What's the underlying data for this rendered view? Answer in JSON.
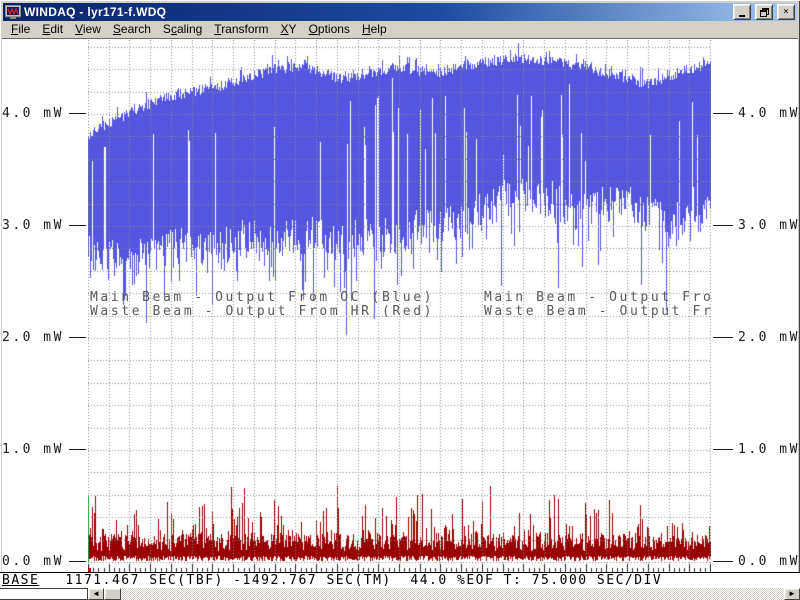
{
  "window": {
    "title": "WINDAQ - lyr171-f.WDQ",
    "buttons": {
      "minimize": "minimize",
      "restore": "restore",
      "close": "×"
    }
  },
  "menu": {
    "items": [
      {
        "label": "File",
        "hotkey_index": 0
      },
      {
        "label": "Edit",
        "hotkey_index": 0
      },
      {
        "label": "View",
        "hotkey_index": 0
      },
      {
        "label": "Search",
        "hotkey_index": 0
      },
      {
        "label": "Scaling",
        "hotkey_index": 1
      },
      {
        "label": "Transform",
        "hotkey_index": 0
      },
      {
        "label": "XY",
        "hotkey_index": 0
      },
      {
        "label": "Options",
        "hotkey_index": 0
      },
      {
        "label": "Help",
        "hotkey_index": 0
      }
    ]
  },
  "status": {
    "prefix": "BASE",
    "text": "1171.467 SEC(TBF) -1492.767 SEC(TM)  44.0 %EOF T: 75.000 SEC/DIV"
  },
  "scrollbar": {
    "left_arrow": "◄",
    "right_arrow": "►"
  },
  "colors": {
    "blue_series": "#5555e0",
    "red_series": "#990000",
    "grid": "#8c8c8c",
    "annotation": "#5a5a5a",
    "cursor_green": "#00aa22",
    "cursor_tick_red": "#cc0000",
    "chrome": "#d4d0c8",
    "title_gradient_start": "#0a246a",
    "title_gradient_end": "#a6caf0"
  },
  "chart_data": {
    "type": "line",
    "title": "",
    "xlabel": "",
    "ylabel": "mW",
    "ylim": [
      0.0,
      4.75
    ],
    "grid": "dotted",
    "x_axis": {
      "sec_per_div": 75.0,
      "time_base_sec": 1171.467,
      "time_marker_sec": -1492.767,
      "percent_eof": 44.0
    },
    "y_ticks": [
      {
        "label": "4.0 mW",
        "mw": 4.0
      },
      {
        "label": "3.0 mW",
        "mw": 3.0
      },
      {
        "label": "2.0 mW",
        "mw": 2.0
      },
      {
        "label": "1.0 mW",
        "mw": 1.0
      },
      {
        "label": "0.0 mW",
        "mw": 0.0
      }
    ],
    "annotations": {
      "left": [
        "Main Beam - Output From OC (Blue)",
        "Waste Beam - Output From HR (Red)"
      ],
      "right_truncated": [
        "Main Beam - Output Fro",
        "Waste Beam - Output Fr"
      ]
    },
    "series": [
      {
        "name": "Main Beam - Output From OC (Blue)",
        "color": "#5555e0",
        "envelope_top_mw": [
          3.82,
          3.96,
          4.1,
          4.18,
          4.24,
          4.3,
          4.4,
          4.43,
          4.32,
          4.36,
          4.43,
          4.36,
          4.42,
          4.47,
          4.5,
          4.46,
          4.42,
          4.34,
          4.27,
          4.37,
          4.46
        ],
        "envelope_bottom_mw": [
          2.8,
          2.7,
          2.74,
          2.82,
          2.78,
          2.9,
          2.86,
          2.96,
          2.82,
          2.95,
          2.9,
          3.05,
          3.0,
          3.2,
          3.3,
          3.22,
          3.12,
          3.25,
          3.1,
          3.05,
          3.15
        ],
        "spike_depth_mw": [
          0.5,
          0.55,
          0.5,
          0.55,
          0.6,
          0.55,
          0.65,
          0.6,
          0.7,
          0.7,
          0.65,
          0.7,
          0.75,
          0.85,
          0.9,
          0.85,
          0.8,
          0.9,
          0.85,
          0.75,
          0.8
        ]
      },
      {
        "name": "Waste Beam - Output From HR (Red)",
        "color": "#990000",
        "base_mw": 0.02,
        "envelope_top_mw": [
          0.3,
          0.32,
          0.28,
          0.3,
          0.33,
          0.35,
          0.32,
          0.34,
          0.3,
          0.33,
          0.36,
          0.34,
          0.38,
          0.36,
          0.4,
          0.38,
          0.42,
          0.36,
          0.32,
          0.3,
          0.28
        ],
        "burst_peak_mw": [
          0.2,
          0.22,
          0.18,
          0.25,
          0.22,
          0.28,
          0.25,
          0.22,
          0.28,
          0.25,
          0.3,
          0.28,
          0.25,
          0.3,
          0.28,
          0.25,
          0.3,
          0.25,
          0.2,
          0.15,
          0.12
        ]
      }
    ]
  }
}
